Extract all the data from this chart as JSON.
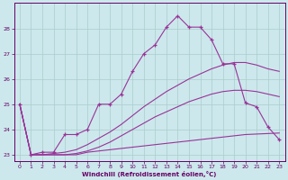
{
  "xlabel": "Windchill (Refroidissement éolien,°C)",
  "background_color": "#cce8ec",
  "grid_color": "#aacccc",
  "line_color": "#993399",
  "xlim": [
    -0.5,
    23.5
  ],
  "ylim": [
    22.75,
    29.0
  ],
  "yticks": [
    23,
    24,
    25,
    26,
    27,
    28
  ],
  "xticks": [
    0,
    1,
    2,
    3,
    4,
    5,
    6,
    7,
    8,
    9,
    10,
    11,
    12,
    13,
    14,
    15,
    16,
    17,
    18,
    19,
    20,
    21,
    22,
    23
  ],
  "series": [
    {
      "x": [
        0,
        1,
        2,
        3,
        4,
        5,
        6,
        7,
        8,
        9,
        10,
        11,
        12,
        13,
        14,
        15,
        16,
        17,
        18,
        19,
        20,
        21,
        22,
        23
      ],
      "y": [
        25.0,
        23.0,
        23.0,
        23.0,
        23.0,
        23.0,
        23.1,
        23.15,
        23.2,
        23.25,
        23.3,
        23.35,
        23.4,
        23.45,
        23.5,
        23.55,
        23.6,
        23.65,
        23.7,
        23.75,
        23.8,
        23.82,
        23.84,
        23.86
      ],
      "marker": false,
      "lw": 0.8
    },
    {
      "x": [
        0,
        1,
        2,
        3,
        4,
        5,
        6,
        7,
        8,
        9,
        10,
        11,
        12,
        13,
        14,
        15,
        16,
        17,
        18,
        19,
        20,
        21,
        22,
        23
      ],
      "y": [
        25.0,
        23.0,
        23.0,
        23.0,
        23.0,
        23.05,
        23.15,
        23.3,
        23.5,
        23.75,
        24.0,
        24.25,
        24.5,
        24.7,
        24.9,
        25.1,
        25.25,
        25.4,
        25.5,
        25.55,
        25.55,
        25.5,
        25.4,
        25.3
      ],
      "marker": false,
      "lw": 0.8
    },
    {
      "x": [
        0,
        1,
        2,
        3,
        4,
        5,
        6,
        7,
        8,
        9,
        10,
        11,
        12,
        13,
        14,
        15,
        16,
        17,
        18,
        19,
        20,
        21,
        22,
        23
      ],
      "y": [
        25.0,
        23.0,
        23.0,
        23.05,
        23.1,
        23.2,
        23.4,
        23.65,
        23.9,
        24.2,
        24.55,
        24.9,
        25.2,
        25.5,
        25.75,
        26.0,
        26.2,
        26.4,
        26.55,
        26.65,
        26.65,
        26.55,
        26.4,
        26.3
      ],
      "marker": false,
      "lw": 0.8
    },
    {
      "x": [
        0,
        1,
        2,
        3,
        4,
        5,
        6,
        7,
        8,
        9,
        10,
        11,
        12,
        13,
        14,
        15,
        16,
        17,
        18,
        19,
        20,
        21,
        22,
        23
      ],
      "y": [
        25.0,
        23.0,
        23.1,
        23.1,
        23.8,
        23.8,
        24.0,
        25.0,
        25.0,
        25.4,
        26.3,
        27.0,
        27.35,
        28.05,
        28.5,
        28.05,
        28.05,
        27.55,
        26.6,
        26.6,
        25.05,
        24.9,
        24.1,
        23.6
      ],
      "marker": true,
      "lw": 0.8
    }
  ]
}
